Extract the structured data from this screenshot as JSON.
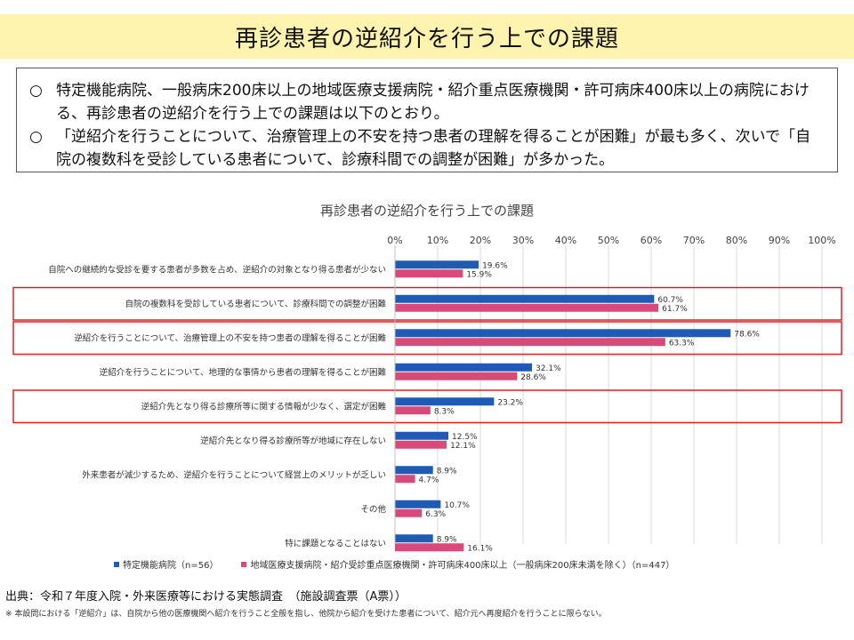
{
  "title": "再診患者の逆紹介を行う上での課題",
  "summary": [
    {
      "bullet": "○",
      "text": "特定機能病院、一般病床200床以上の地域医療支援病院・紹介重点医療機関・許可病床400床以上の病院における、再診患者の逆紹介を行う上での課題は以下のとおり。"
    },
    {
      "bullet": "○",
      "text": "「逆紹介を行うことについて、治療管理上の不安を持つ患者の理解を得ることが困難」が最も多く、次いで「自院の複数科を受診している患者について、診療科間での調整が困難」が多かった。"
    }
  ],
  "chart_data": {
    "type": "bar",
    "orientation": "horizontal",
    "title": "再診患者の逆紹介を行う上での課題",
    "x_ticks": [
      "0%",
      "10%",
      "20%",
      "30%",
      "40%",
      "50%",
      "60%",
      "70%",
      "80%",
      "90%",
      "100%"
    ],
    "xlim": [
      0,
      100
    ],
    "grid": true,
    "legend_position": "bottom",
    "categories": [
      "自院への継続的な受診を要する患者が多数を占め、逆紹介の対象となり得る患者が少ない",
      "自院の複数科を受診している患者について、診療科間での調整が困難",
      "逆紹介を行うことについて、治療管理上の不安を持つ患者の理解を得ることが困難",
      "逆紹介を行うことについて、地理的な事情から患者の理解を得ることが困難",
      "逆紹介先となり得る診療所等に関する情報が少なく、選定が困難",
      "逆紹介先となり得る診療所等が地域に存在しない",
      "外来患者が減少するため、逆紹介を行うことについて経営上のメリットが乏しい",
      "その他",
      "特に課題となることはない"
    ],
    "series": [
      {
        "name": "特定機能病院（n=56）",
        "color": "#1f5bb5",
        "values": [
          19.6,
          60.7,
          78.6,
          32.1,
          23.2,
          12.5,
          8.9,
          10.7,
          8.9
        ],
        "labels": [
          "19.6%",
          "60.7%",
          "78.6%",
          "32.1%",
          "23.2%",
          "12.5%",
          "8.9%",
          "10.7%",
          "8.9%"
        ]
      },
      {
        "name": "地域医療支援病院・紹介受診重点医療機関・許可病床400床以上（一般病床200床未満を除く）（n=447）",
        "color": "#d94a7a",
        "values": [
          15.9,
          61.7,
          63.3,
          28.6,
          8.3,
          12.1,
          4.7,
          6.3,
          16.1
        ],
        "labels": [
          "15.9%",
          "61.7%",
          "63.3%",
          "28.6%",
          "8.3%",
          "12.1%",
          "4.7%",
          "6.3%",
          "16.1%"
        ]
      }
    ],
    "highlighted_categories": [
      1,
      2,
      4
    ],
    "highlight_color": "#e02020"
  },
  "source": "出典：令和７年度入院・外来医療等における実態調査　（施設調査票（A票））",
  "note": "※ 本設問における「逆紹介」は、自院から他の医療機関へ紹介を行うこと全般を指し、他院から紹介を受けた患者について、紹介元へ再度紹介を行うことに限らない。"
}
